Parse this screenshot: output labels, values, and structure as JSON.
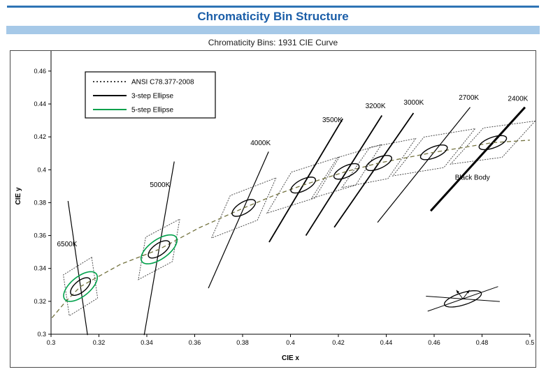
{
  "page": {
    "title": "Chromaticity Bin Structure",
    "subtitle": "Chromaticity Bins: 1931 CIE Curve"
  },
  "colors": {
    "rule": "#2E74B5",
    "title": "#1B5EA8",
    "band": "#A6C9E8",
    "locus": "#73723E",
    "green": "#00A14B"
  },
  "chart_data": {
    "type": "scatter",
    "title": "Chromaticity Bins: 1931 CIE Curve",
    "xlabel": "CIE x",
    "ylabel": "CIE y",
    "xlim": [
      0.3,
      0.5
    ],
    "ylim": [
      0.3,
      0.468
    ],
    "xticks": [
      "0.3",
      "0.32",
      "0.34",
      "0.36",
      "0.38",
      "0.4",
      "0.42",
      "0.44",
      "0.46",
      "0.48",
      "0.5"
    ],
    "yticks": [
      "0.3",
      "0.32",
      "0.34",
      "0.36",
      "0.38",
      "0.4",
      "0.42",
      "0.44",
      "0.46"
    ],
    "grid": false,
    "legend_position": "top-left",
    "legend": [
      {
        "label": "ANSI C78.377-2008",
        "style": "dotted",
        "color": "#000000"
      },
      {
        "label": "3-step Ellipse",
        "style": "solid",
        "color": "#000000"
      },
      {
        "label": "5-step Ellipse",
        "style": "solid",
        "color": "#00A14B"
      }
    ],
    "blackbody_label": {
      "text": "Black Body",
      "x": 0.476,
      "y": 0.394
    },
    "blackbody_locus": [
      [
        0.3004,
        0.31
      ],
      [
        0.3062,
        0.32
      ],
      [
        0.3123,
        0.329
      ],
      [
        0.329,
        0.3425
      ],
      [
        0.3451,
        0.3516
      ],
      [
        0.362,
        0.3648
      ],
      [
        0.3805,
        0.3768
      ],
      [
        0.393,
        0.3843
      ],
      [
        0.4053,
        0.3907
      ],
      [
        0.4234,
        0.399
      ],
      [
        0.4369,
        0.4041
      ],
      [
        0.4599,
        0.4106
      ],
      [
        0.4845,
        0.4165
      ],
      [
        0.5,
        0.418
      ]
    ],
    "bins": [
      {
        "label": "6500K",
        "cx": 0.3123,
        "cy": 0.329,
        "iso_slope": -10,
        "line_y": [
          0.2995,
          0.381
        ],
        "line_width": 1.2,
        "label_pos": [
          0.3067,
          0.3535
        ],
        "quad": {
          "tx": 0.74,
          "ty": 0.67,
          "ta": 0.008,
          "ix": -0.0995,
          "iy": 0.995,
          "ib": 0.0125
        },
        "ellipse": {
          "a": 0.0062,
          "b": 0.0028,
          "rot": 56
        },
        "five_step": {
          "a": 0.0104,
          "b": 0.0048,
          "rot": 56
        }
      },
      {
        "label": "5000K",
        "cx": 0.3451,
        "cy": 0.3516,
        "iso_slope": 8.4,
        "line_y": [
          0.2995,
          0.405
        ],
        "line_width": 1.2,
        "label_pos": [
          0.3455,
          0.3895
        ],
        "quad": {
          "tx": 0.79,
          "ty": 0.61,
          "ta": 0.009,
          "ix": 0.118,
          "iy": 0.993,
          "ib": 0.013
        },
        "ellipse": {
          "a": 0.0063,
          "b": 0.0029,
          "rot": 52
        },
        "five_step": {
          "a": 0.0105,
          "b": 0.0049,
          "rot": 52
        }
      },
      {
        "label": "4000K",
        "cx": 0.3805,
        "cy": 0.3768,
        "iso_slope": 3.3,
        "line_y": [
          0.328,
          0.411
        ],
        "line_width": 1.2,
        "label_pos": [
          0.3875,
          0.415
        ],
        "quad": {
          "tx": 0.87,
          "ty": 0.49,
          "ta": 0.011,
          "ix": 0.29,
          "iy": 0.956,
          "ib": 0.0135
        },
        "ellipse": {
          "a": 0.0064,
          "b": 0.003,
          "rot": 47
        }
      },
      {
        "label": "3500K",
        "cx": 0.4053,
        "cy": 0.3907,
        "iso_slope": 2.44,
        "line_y": [
          0.356,
          0.431
        ],
        "line_width": 1.8,
        "label_pos": [
          0.4175,
          0.429
        ],
        "quad": {
          "tx": 0.91,
          "ty": 0.42,
          "ta": 0.011,
          "ix": 0.379,
          "iy": 0.925,
          "ib": 0.0135
        },
        "ellipse": {
          "a": 0.0064,
          "b": 0.003,
          "rot": 42
        }
      },
      {
        "label": "3200K",
        "cx": 0.4234,
        "cy": 0.399,
        "iso_slope": 2.3,
        "line_y": [
          0.36,
          0.433
        ],
        "line_width": 1.8,
        "label_pos": [
          0.4355,
          0.4375
        ],
        "quad": {
          "tx": 0.92,
          "ty": 0.4,
          "ta": 0.01,
          "ix": 0.399,
          "iy": 0.917,
          "ib": 0.0135
        },
        "ellipse": {
          "a": 0.0064,
          "b": 0.003,
          "rot": 40
        }
      },
      {
        "label": "3000K",
        "cx": 0.4369,
        "cy": 0.4041,
        "iso_slope": 2.1,
        "line_y": [
          0.365,
          0.4345
        ],
        "line_width": 1.8,
        "label_pos": [
          0.4515,
          0.4395
        ],
        "quad": {
          "tx": 0.96,
          "ty": 0.27,
          "ta": 0.01,
          "ix": 0.43,
          "iy": 0.903,
          "ib": 0.0135
        },
        "ellipse": {
          "a": 0.0064,
          "b": 0.003,
          "rot": 38
        }
      },
      {
        "label": "2700K",
        "cx": 0.4599,
        "cy": 0.4106,
        "iso_slope": 1.81,
        "line_y": [
          0.368,
          0.438
        ],
        "line_width": 1.2,
        "label_pos": [
          0.4745,
          0.4425
        ],
        "quad": {
          "tx": 0.97,
          "ty": 0.23,
          "ta": 0.011,
          "ix": 0.484,
          "iy": 0.875,
          "ib": 0.0135
        },
        "ellipse": {
          "a": 0.0065,
          "b": 0.003,
          "rot": 35
        }
      },
      {
        "label": "2400K",
        "cx": 0.4845,
        "cy": 0.4165,
        "iso_slope": 1.6,
        "line_y": [
          0.375,
          0.438
        ],
        "line_width": 3,
        "label_pos": [
          0.495,
          0.442
        ],
        "quad": {
          "tx": 0.98,
          "ty": 0.19,
          "ta": 0.011,
          "ix": 0.53,
          "iy": 0.848,
          "ib": 0.013
        },
        "ellipse": {
          "a": 0.0065,
          "b": 0.003,
          "rot": 32
        }
      }
    ],
    "inset": {
      "cx": 0.472,
      "cy": 0.3215,
      "ellipse": {
        "a": 0.0085,
        "b": 0.0035,
        "rot": 27
      },
      "lines": [
        {
          "angle": 27,
          "len": 0.0165
        },
        {
          "angle": -6,
          "len": 0.0155
        }
      ],
      "arrows": [
        {
          "angle": 63,
          "len": 0.006
        },
        {
          "angle": 117,
          "len": 0.006
        }
      ]
    }
  }
}
